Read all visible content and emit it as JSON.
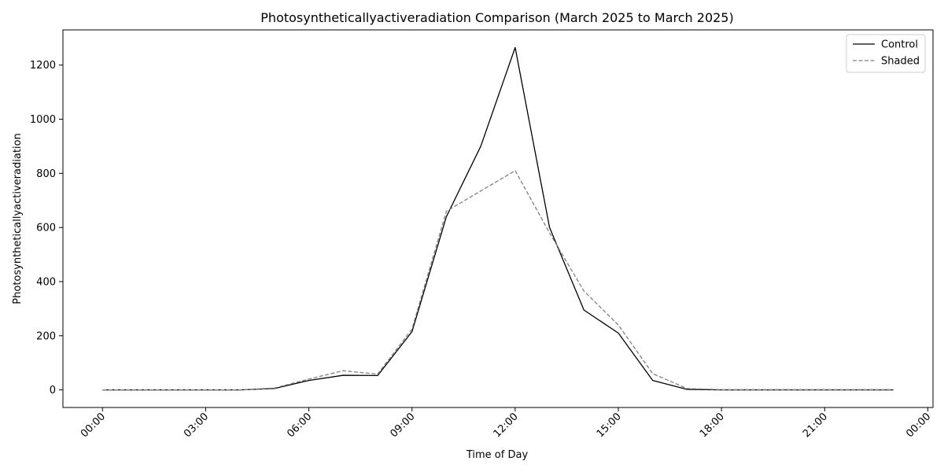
{
  "chart_data": {
    "type": "line",
    "title": "Photosyntheticallyactiveradiation Comparison (March 2025 to March 2025)",
    "xlabel": "Time of Day",
    "ylabel": "Photosyntheticallyactiveradiation",
    "x_hours": [
      0,
      1,
      2,
      3,
      4,
      5,
      6,
      7,
      8,
      9,
      10,
      11,
      12,
      13,
      14,
      15,
      16,
      17,
      18,
      19,
      20,
      21,
      22,
      23
    ],
    "xlim": [
      -1.15,
      24.15
    ],
    "ylim": [
      -65,
      1330
    ],
    "x_ticks": [
      {
        "hour": 0,
        "label": "00:00"
      },
      {
        "hour": 3,
        "label": "03:00"
      },
      {
        "hour": 6,
        "label": "06:00"
      },
      {
        "hour": 9,
        "label": "09:00"
      },
      {
        "hour": 12,
        "label": "12:00"
      },
      {
        "hour": 15,
        "label": "15:00"
      },
      {
        "hour": 18,
        "label": "18:00"
      },
      {
        "hour": 21,
        "label": "21:00"
      },
      {
        "hour": 24,
        "label": "00:00"
      }
    ],
    "y_ticks": [
      0,
      200,
      400,
      600,
      800,
      1000,
      1200
    ],
    "grid": false,
    "legend_position": "top-right",
    "series": [
      {
        "name": "Control",
        "color": "#000000",
        "dash": "solid",
        "values": [
          0,
          0,
          0,
          0,
          0,
          5,
          35,
          54,
          53,
          215,
          640,
          900,
          1265,
          600,
          295,
          210,
          35,
          2,
          0,
          0,
          0,
          0,
          0,
          0
        ]
      },
      {
        "name": "Shaded",
        "color": "#808080",
        "dash": "dashed",
        "values": [
          0,
          0,
          0,
          0,
          0,
          7,
          40,
          71,
          58,
          225,
          660,
          735,
          810,
          580,
          365,
          240,
          60,
          5,
          1,
          1,
          1,
          1,
          1,
          1
        ]
      }
    ]
  }
}
